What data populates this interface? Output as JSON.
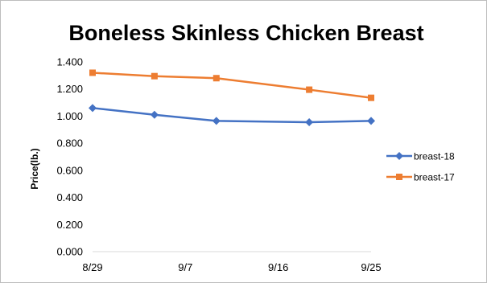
{
  "chart_data": {
    "type": "line",
    "title": "Boneless Skinless Chicken Breast",
    "xlabel": "",
    "ylabel": "Price(lb.)",
    "x_tick_labels": [
      "8/29",
      "9/7",
      "9/16",
      "9/25"
    ],
    "x_dates": [
      "8/29",
      "9/4",
      "9/10",
      "9/19",
      "9/25"
    ],
    "ylim": [
      0,
      1.4
    ],
    "y_ticks": [
      "0.000",
      "0.200",
      "0.400",
      "0.600",
      "0.800",
      "1.000",
      "1.200",
      "1.400"
    ],
    "grid": false,
    "legend_position": "right",
    "series": [
      {
        "name": "breast-18",
        "color": "#4472c4",
        "marker": "diamond",
        "values": [
          1.06,
          1.01,
          0.965,
          0.955,
          0.965
        ]
      },
      {
        "name": "breast-17",
        "color": "#ed7d31",
        "marker": "square",
        "values": [
          1.32,
          1.295,
          1.28,
          1.195,
          1.135
        ]
      }
    ]
  }
}
